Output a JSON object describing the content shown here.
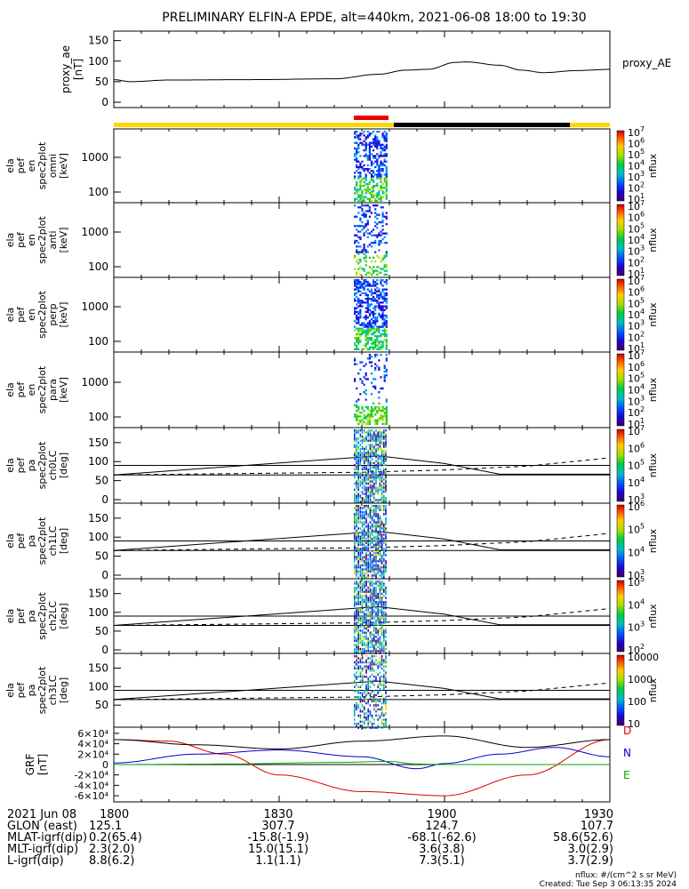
{
  "title": "PRELIMINARY ELFIN-A EPDE, alt=440km, 2021-06-08 18:00 to 19:30",
  "x_ticks": [
    "1800",
    "1830",
    "1900",
    "1930"
  ],
  "footer": {
    "rows": [
      {
        "label": "2021 Jun 08",
        "values": [
          "1800",
          "1830",
          "1900",
          "1930"
        ]
      },
      {
        "label": "GLON (east)",
        "values": [
          "125.1",
          "307.7",
          "124.7",
          "107.7"
        ]
      },
      {
        "label": "MLAT-igrf(dip)",
        "values": [
          "0.2(65.4)",
          "-15.8(-1.9)",
          "-68.1(-62.6)",
          "58.6(52.6)"
        ]
      },
      {
        "label": "MLT-igrf(dip)",
        "values": [
          "2.3(2.0)",
          "15.0(15.1)",
          "3.6(3.8)",
          "3.0(2.9)"
        ]
      },
      {
        "label": "L-igrf(dip)",
        "values": [
          "8.8(6.2)",
          "1.1(1.1)",
          "7.3(5.1)",
          "3.7(2.9)"
        ]
      }
    ],
    "units_note": "nflux: #/(cm^2 s sr MeV)",
    "created": "Created: Tue Sep  3 06:13:35 2024"
  },
  "colors": {
    "orbit_bar_yellow": "#ffd700",
    "orbit_bar_black": "#000000",
    "orbit_bar_red": "#ee0000",
    "grf_x": "#000000",
    "grf_y": "#0000cc",
    "grf_z": "#00aa00",
    "grf_mag": "#dd0000"
  },
  "chart_data": [
    {
      "type": "line",
      "panel": "proxy_ae",
      "ylabel": [
        "proxy_ae",
        "[nT]"
      ],
      "legend": "proxy_AE",
      "yticks": [
        "0",
        "50",
        "100",
        "150"
      ],
      "ylim": [
        0,
        160
      ],
      "x_minutes": [
        0,
        3,
        10,
        25,
        40,
        48,
        53,
        57,
        62,
        64,
        70,
        74,
        78,
        84,
        90
      ],
      "y": [
        55,
        50,
        54,
        55,
        57,
        68,
        78,
        80,
        97,
        98,
        90,
        78,
        72,
        77,
        80
      ]
    },
    {
      "type": "heatmap",
      "panel": "omni",
      "ylabel": [
        "ela",
        "pef",
        "en",
        "spec2plot",
        "omni",
        "[keV]"
      ],
      "yticks": [
        "100",
        "1000"
      ],
      "colorbar": {
        "label": "nflux",
        "ticks": [
          "10",
          "10",
          "10",
          "10",
          "10",
          "10",
          "10"
        ],
        "exps": [
          "1",
          "2",
          "3",
          "4",
          "5",
          "6",
          "7"
        ]
      }
    },
    {
      "type": "heatmap",
      "panel": "anti",
      "ylabel": [
        "ela",
        "pef",
        "en",
        "spec2plot",
        "anti",
        "[keV]"
      ],
      "yticks": [
        "100",
        "1000"
      ],
      "colorbar": {
        "label": "nflux",
        "ticks": [
          "10",
          "10",
          "10",
          "10",
          "10",
          "10",
          "10"
        ],
        "exps": [
          "1",
          "2",
          "3",
          "4",
          "5",
          "6",
          "7"
        ]
      }
    },
    {
      "type": "heatmap",
      "panel": "perp",
      "ylabel": [
        "ela",
        "pef",
        "en",
        "spec2plot",
        "perp",
        "[keV]"
      ],
      "yticks": [
        "100",
        "1000"
      ],
      "colorbar": {
        "label": "nflux",
        "ticks": [
          "10",
          "10",
          "10",
          "10",
          "10",
          "10",
          "10"
        ],
        "exps": [
          "1",
          "2",
          "3",
          "4",
          "5",
          "6",
          "7"
        ]
      }
    },
    {
      "type": "heatmap",
      "panel": "para",
      "ylabel": [
        "ela",
        "pef",
        "en",
        "spec2plot",
        "para",
        "[keV]"
      ],
      "yticks": [
        "100",
        "1000"
      ],
      "colorbar": {
        "label": "nflux",
        "ticks": [
          "10",
          "10",
          "10",
          "10",
          "10",
          "10",
          "10"
        ],
        "exps": [
          "1",
          "2",
          "3",
          "4",
          "5",
          "6",
          "7"
        ]
      }
    },
    {
      "type": "heatmap",
      "panel": "ch0LC",
      "ylabel": [
        "ela",
        "pef",
        "pa",
        "spec2plot",
        "ch0LC",
        "[deg]"
      ],
      "yticks": [
        "0",
        "50",
        "100",
        "150"
      ],
      "ylim": [
        0,
        180
      ],
      "colorbar": {
        "label": "nflux",
        "ticks": [
          "10",
          "10",
          "10",
          "10",
          "10"
        ],
        "exps": [
          "3",
          "4",
          "5",
          "6",
          "7"
        ]
      }
    },
    {
      "type": "heatmap",
      "panel": "ch1LC",
      "ylabel": [
        "ela",
        "pef",
        "pa",
        "spec2plot",
        "ch1LC",
        "[deg]"
      ],
      "yticks": [
        "0",
        "50",
        "100",
        "150"
      ],
      "ylim": [
        0,
        180
      ],
      "colorbar": {
        "label": "nflux",
        "ticks": [
          "10",
          "10",
          "10",
          "10"
        ],
        "exps": [
          "3",
          "4",
          "5",
          "6"
        ]
      }
    },
    {
      "type": "heatmap",
      "panel": "ch2LC",
      "ylabel": [
        "ela",
        "pef",
        "pa",
        "spec2plot",
        "ch2LC",
        "[deg]"
      ],
      "yticks": [
        "0",
        "50",
        "100",
        "150"
      ],
      "ylim": [
        0,
        180
      ],
      "colorbar": {
        "label": "nflux",
        "ticks": [
          "10",
          "10",
          "10",
          "10"
        ],
        "exps": [
          "2",
          "3",
          "4",
          "5"
        ]
      }
    },
    {
      "type": "heatmap",
      "panel": "ch3LC",
      "ylabel": [
        "ela",
        "pef",
        "pa",
        "spec2plot",
        "ch3LC",
        "[deg]"
      ],
      "yticks": [
        "50",
        "100",
        "150"
      ],
      "ylim": [
        0,
        180
      ],
      "colorbar": {
        "label": "nflux",
        "ticks": [
          "10",
          "100",
          "1000",
          "10000"
        ]
      }
    },
    {
      "type": "line",
      "panel": "GRF",
      "ylabel": [
        "GRF",
        "[nT]"
      ],
      "yticks": [
        "-6×10⁴",
        "-4×10⁴",
        "-2×10⁴",
        "0",
        "2×10⁴",
        "4×10⁴",
        "6×10⁴"
      ],
      "ylim": [
        -65000,
        65000
      ],
      "legend": [
        "D",
        "N",
        "E"
      ],
      "series": [
        {
          "name": "D",
          "x_minutes": [
            0,
            10,
            20,
            30,
            45,
            60,
            75,
            90
          ],
          "y": [
            48000,
            45000,
            20000,
            -20000,
            -52000,
            -60000,
            -20000,
            48000
          ]
        },
        {
          "name": "N",
          "x_minutes": [
            0,
            15,
            30,
            45,
            55,
            60,
            70,
            80,
            90
          ],
          "y": [
            3000,
            20000,
            28000,
            15000,
            -8000,
            2000,
            20000,
            33000,
            15000
          ]
        },
        {
          "name": "E",
          "x_minutes": [
            0,
            20,
            40,
            50,
            55,
            60,
            90
          ],
          "y": [
            0,
            1000,
            4000,
            6000,
            1000,
            0,
            0
          ]
        },
        {
          "name": "",
          "x_minutes": [
            0,
            15,
            30,
            45,
            60,
            75,
            90
          ],
          "y": [
            48000,
            38000,
            30000,
            45000,
            55000,
            33000,
            48000
          ]
        }
      ]
    }
  ]
}
